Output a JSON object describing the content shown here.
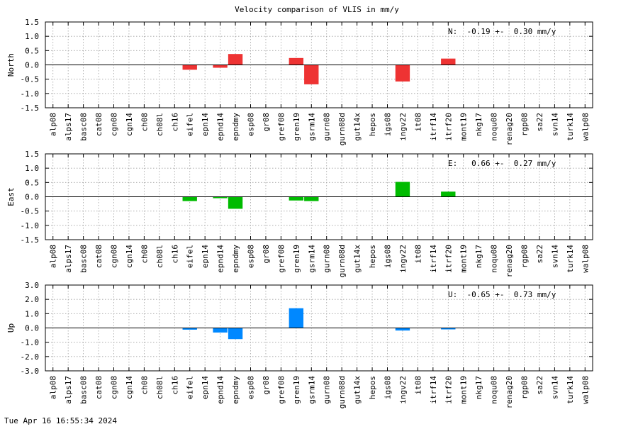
{
  "title": "Velocity comparison of VLIS in mm/y",
  "timestamp": "Tue Apr 16 16:55:34 2024",
  "chart_data": [
    {
      "type": "bar",
      "ylabel": "North",
      "categories": [
        "alp08",
        "alps17",
        "basc08",
        "cat08",
        "cgn08",
        "cgn14",
        "ch08",
        "ch08l",
        "ch16",
        "eifel",
        "epn14",
        "epnd14",
        "epndmy",
        "esp08",
        "gr08",
        "gref08",
        "gren19",
        "gsrm14",
        "gurn08",
        "gurn08d",
        "gut14x",
        "hepos",
        "igs08",
        "ingv22",
        "it08",
        "itrf14",
        "itrf20",
        "mont19",
        "nkg17",
        "noqu08",
        "renag20",
        "rgp08",
        "sa22",
        "svn14",
        "turk14",
        "walp08"
      ],
      "values": [
        null,
        null,
        null,
        null,
        null,
        null,
        null,
        null,
        null,
        -0.17,
        null,
        -0.1,
        0.38,
        null,
        null,
        null,
        0.24,
        -0.68,
        null,
        null,
        null,
        null,
        null,
        -0.58,
        null,
        null,
        0.22,
        null,
        null,
        null,
        null,
        null,
        null,
        null,
        null,
        null
      ],
      "ylim": [
        -1.5,
        1.5
      ],
      "yticks": [
        -1.5,
        -1.0,
        -0.5,
        0.0,
        0.5,
        1.0,
        1.5
      ],
      "ytick_labels": [
        "-1.5",
        "-1.0",
        "-0.5",
        "0.0",
        "0.5",
        "1.0",
        "1.5"
      ],
      "annotation": "N:  -0.19 +-  0.30 mm/y",
      "color": "#ee3333",
      "grid": true
    },
    {
      "type": "bar",
      "ylabel": "East",
      "categories": [
        "alp08",
        "alps17",
        "basc08",
        "cat08",
        "cgn08",
        "cgn14",
        "ch08",
        "ch08l",
        "ch16",
        "eifel",
        "epn14",
        "epnd14",
        "epndmy",
        "esp08",
        "gr08",
        "gref08",
        "gren19",
        "gsrm14",
        "gurn08",
        "gurn08d",
        "gut14x",
        "hepos",
        "igs08",
        "ingv22",
        "it08",
        "itrf14",
        "itrf20",
        "mont19",
        "nkg17",
        "noqu08",
        "renag20",
        "rgp08",
        "sa22",
        "svn14",
        "turk14",
        "walp08"
      ],
      "values": [
        null,
        null,
        null,
        null,
        null,
        null,
        null,
        null,
        null,
        -0.15,
        null,
        -0.05,
        -0.42,
        null,
        null,
        null,
        -0.13,
        -0.15,
        null,
        null,
        null,
        null,
        null,
        0.52,
        null,
        null,
        0.18,
        null,
        null,
        null,
        null,
        null,
        null,
        null,
        null,
        null
      ],
      "ylim": [
        -1.5,
        1.5
      ],
      "yticks": [
        -1.5,
        -1.0,
        -0.5,
        0.0,
        0.5,
        1.0,
        1.5
      ],
      "ytick_labels": [
        "-1.5",
        "-1.0",
        "-0.5",
        "0.0",
        "0.5",
        "1.0",
        "1.5"
      ],
      "annotation": "E:   0.66 +-  0.27 mm/y",
      "color": "#00bb00",
      "grid": true
    },
    {
      "type": "bar",
      "ylabel": "Up",
      "categories": [
        "alp08",
        "alps17",
        "basc08",
        "cat08",
        "cgn08",
        "cgn14",
        "ch08",
        "ch08l",
        "ch16",
        "eifel",
        "epn14",
        "epnd14",
        "epndmy",
        "esp08",
        "gr08",
        "gref08",
        "gren19",
        "gsrm14",
        "gurn08",
        "gurn08d",
        "gut14x",
        "hepos",
        "igs08",
        "ingv22",
        "it08",
        "itrf14",
        "itrf20",
        "mont19",
        "nkg17",
        "noqu08",
        "renag20",
        "rgp08",
        "sa22",
        "svn14",
        "turk14",
        "walp08"
      ],
      "values": [
        null,
        null,
        null,
        null,
        null,
        null,
        null,
        null,
        null,
        -0.12,
        null,
        -0.32,
        -0.78,
        null,
        null,
        null,
        1.38,
        null,
        null,
        null,
        null,
        null,
        null,
        -0.18,
        null,
        null,
        -0.1,
        null,
        null,
        null,
        null,
        null,
        null,
        null,
        null,
        null
      ],
      "ylim": [
        -3.0,
        3.0
      ],
      "yticks": [
        -3.0,
        -2.0,
        -1.0,
        0.0,
        1.0,
        2.0,
        3.0
      ],
      "ytick_labels": [
        "-3.0",
        "-2.0",
        "-1.0",
        "0.0",
        "1.0",
        "2.0",
        "3.0"
      ],
      "annotation": "U:  -0.65 +-  0.73 mm/y",
      "color": "#0088ff",
      "grid": true
    }
  ]
}
